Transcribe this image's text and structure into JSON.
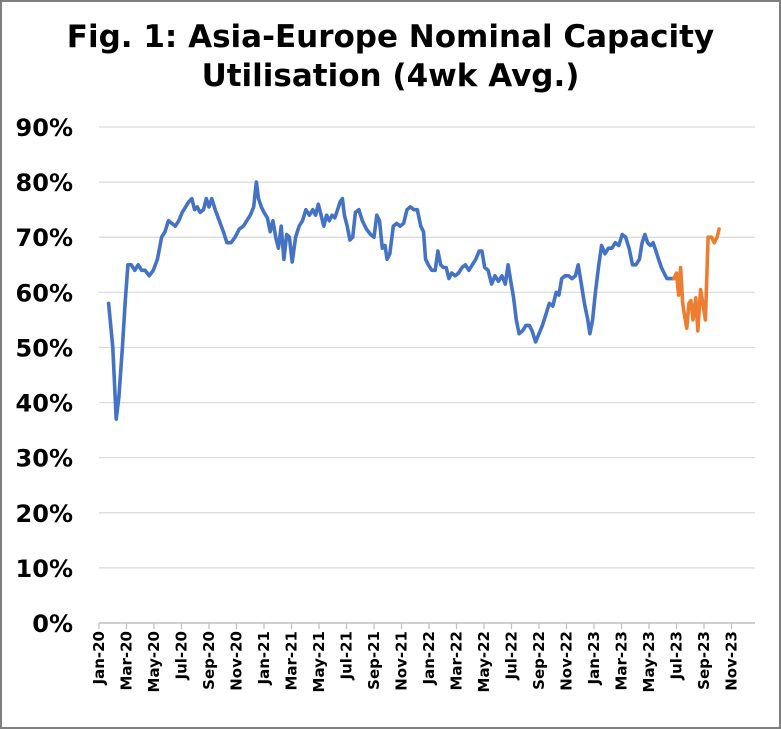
{
  "chart_data": {
    "type": "line",
    "title_lines": [
      "Fig. 1: Asia-Europe Nominal Capacity",
      "Utilisation (4wk Avg.)"
    ],
    "xlabel": "",
    "ylabel": "",
    "ylim": [
      0,
      90
    ],
    "y_ticks": [
      "0%",
      "10%",
      "20%",
      "30%",
      "40%",
      "50%",
      "60%",
      "70%",
      "80%",
      "90%"
    ],
    "x_ticks": [
      "Jan-20",
      "Mar-20",
      "May-20",
      "Jul-20",
      "Sep-20",
      "Nov-20",
      "Jan-21",
      "Mar-21",
      "May-21",
      "Jul-21",
      "Sep-21",
      "Nov-21",
      "Jan-22",
      "Mar-22",
      "May-22",
      "Jul-22",
      "Sep-22",
      "Nov-22",
      "Jan-23",
      "Mar-23",
      "May-23",
      "Jul-23",
      "Sep-23",
      "Nov-23"
    ],
    "grid": true,
    "legend": "none",
    "x_unit": "months since Jan-20",
    "series": [
      {
        "name": "",
        "color": "#4472c4",
        "points": [
          [
            0.7,
            58
          ],
          [
            1.0,
            50
          ],
          [
            1.25,
            37
          ],
          [
            1.45,
            41
          ],
          [
            1.7,
            50
          ],
          [
            1.9,
            58
          ],
          [
            2.1,
            65
          ],
          [
            2.35,
            65
          ],
          [
            2.6,
            64
          ],
          [
            2.85,
            65
          ],
          [
            3.1,
            64
          ],
          [
            3.35,
            64
          ],
          [
            3.65,
            63
          ],
          [
            3.95,
            64
          ],
          [
            4.25,
            66
          ],
          [
            4.55,
            70
          ],
          [
            4.8,
            71
          ],
          [
            5.05,
            73
          ],
          [
            5.3,
            72.5
          ],
          [
            5.55,
            72
          ],
          [
            5.8,
            73
          ],
          [
            6.05,
            74.5
          ],
          [
            6.3,
            75.5
          ],
          [
            6.55,
            76.5
          ],
          [
            6.75,
            77
          ],
          [
            6.95,
            75
          ],
          [
            7.15,
            75.5
          ],
          [
            7.35,
            74.5
          ],
          [
            7.6,
            75
          ],
          [
            7.8,
            77
          ],
          [
            8.0,
            75.5
          ],
          [
            8.2,
            77
          ],
          [
            8.45,
            75
          ],
          [
            8.75,
            73
          ],
          [
            9.05,
            71
          ],
          [
            9.3,
            69
          ],
          [
            9.6,
            69
          ],
          [
            9.9,
            70
          ],
          [
            10.2,
            71.5
          ],
          [
            10.5,
            72
          ],
          [
            10.75,
            73
          ],
          [
            11.0,
            74
          ],
          [
            11.25,
            75.5
          ],
          [
            11.35,
            78
          ],
          [
            11.45,
            80
          ],
          [
            11.6,
            77
          ],
          [
            11.8,
            75.5
          ],
          [
            12.0,
            74.5
          ],
          [
            12.25,
            73.5
          ],
          [
            12.45,
            71
          ],
          [
            12.65,
            73
          ],
          [
            12.85,
            70
          ],
          [
            13.05,
            68
          ],
          [
            13.25,
            72
          ],
          [
            13.45,
            66
          ],
          [
            13.65,
            70.5
          ],
          [
            13.85,
            70
          ],
          [
            14.05,
            65.5
          ],
          [
            14.3,
            70
          ],
          [
            14.55,
            72
          ],
          [
            14.8,
            73
          ],
          [
            15.05,
            75
          ],
          [
            15.3,
            74
          ],
          [
            15.55,
            75
          ],
          [
            15.75,
            74
          ],
          [
            15.95,
            76
          ],
          [
            16.15,
            74
          ],
          [
            16.35,
            72
          ],
          [
            16.55,
            74
          ],
          [
            16.75,
            73
          ],
          [
            16.95,
            74
          ],
          [
            17.15,
            73.5
          ],
          [
            17.35,
            75
          ],
          [
            17.55,
            76.5
          ],
          [
            17.7,
            77
          ],
          [
            17.85,
            74
          ],
          [
            18.05,
            72
          ],
          [
            18.25,
            69.5
          ],
          [
            18.45,
            70
          ],
          [
            18.65,
            74.5
          ],
          [
            18.9,
            75
          ],
          [
            19.15,
            73
          ],
          [
            19.45,
            71.5
          ],
          [
            19.75,
            70.5
          ],
          [
            20.0,
            70
          ],
          [
            20.2,
            74
          ],
          [
            20.4,
            73
          ],
          [
            20.6,
            68
          ],
          [
            20.8,
            68.5
          ],
          [
            20.95,
            66
          ],
          [
            21.15,
            67
          ],
          [
            21.4,
            72
          ],
          [
            21.65,
            72.5
          ],
          [
            21.9,
            72
          ],
          [
            22.15,
            72.5
          ],
          [
            22.4,
            75
          ],
          [
            22.65,
            75.5
          ],
          [
            22.9,
            75
          ],
          [
            23.15,
            75
          ],
          [
            23.4,
            72
          ],
          [
            23.6,
            71
          ],
          [
            23.75,
            66
          ],
          [
            23.95,
            65
          ],
          [
            24.2,
            64
          ],
          [
            24.45,
            64
          ],
          [
            24.65,
            67.5
          ],
          [
            24.85,
            65
          ],
          [
            25.05,
            64.5
          ],
          [
            25.25,
            64.5
          ],
          [
            25.45,
            62.5
          ],
          [
            25.65,
            63.5
          ],
          [
            25.9,
            63
          ],
          [
            26.15,
            63.5
          ],
          [
            26.4,
            64.5
          ],
          [
            26.65,
            65
          ],
          [
            26.9,
            64
          ],
          [
            27.15,
            65
          ],
          [
            27.4,
            66
          ],
          [
            27.65,
            67.5
          ],
          [
            27.85,
            67.5
          ],
          [
            28.05,
            64.5
          ],
          [
            28.3,
            64
          ],
          [
            28.55,
            61.5
          ],
          [
            28.8,
            63
          ],
          [
            29.05,
            62
          ],
          [
            29.3,
            63
          ],
          [
            29.55,
            61.5
          ],
          [
            29.75,
            65
          ],
          [
            29.95,
            62
          ],
          [
            30.15,
            59
          ],
          [
            30.35,
            55
          ],
          [
            30.55,
            52.5
          ],
          [
            30.8,
            53
          ],
          [
            31.05,
            54
          ],
          [
            31.3,
            54
          ],
          [
            31.5,
            53
          ],
          [
            31.75,
            51
          ],
          [
            32.0,
            52.5
          ],
          [
            32.25,
            54
          ],
          [
            32.5,
            56
          ],
          [
            32.75,
            58
          ],
          [
            33.0,
            57.5
          ],
          [
            33.25,
            60
          ],
          [
            33.45,
            59.5
          ],
          [
            33.65,
            62.5
          ],
          [
            33.9,
            63
          ],
          [
            34.15,
            63
          ],
          [
            34.4,
            62.5
          ],
          [
            34.65,
            63
          ],
          [
            34.85,
            65
          ],
          [
            35.05,
            62
          ],
          [
            35.3,
            58
          ],
          [
            35.55,
            55
          ],
          [
            35.7,
            52.5
          ],
          [
            35.9,
            55
          ],
          [
            36.1,
            60
          ],
          [
            36.35,
            65
          ],
          [
            36.55,
            68.5
          ],
          [
            36.8,
            67
          ],
          [
            37.05,
            68
          ],
          [
            37.3,
            68
          ],
          [
            37.55,
            69
          ],
          [
            37.8,
            68.5
          ],
          [
            38.05,
            70.5
          ],
          [
            38.3,
            70
          ],
          [
            38.55,
            68
          ],
          [
            38.8,
            65
          ],
          [
            39.05,
            65
          ],
          [
            39.3,
            66
          ],
          [
            39.5,
            69
          ],
          [
            39.7,
            70.5
          ],
          [
            39.9,
            69
          ],
          [
            40.1,
            68.5
          ],
          [
            40.3,
            69
          ],
          [
            40.5,
            67.5
          ],
          [
            40.7,
            66
          ],
          [
            40.9,
            64.5
          ],
          [
            41.1,
            63.5
          ],
          [
            41.3,
            62.5
          ],
          [
            41.55,
            62.5
          ],
          [
            41.8,
            62.5
          ]
        ]
      },
      {
        "name": "",
        "color": "#ed7d31",
        "points": [
          [
            41.8,
            62.5
          ],
          [
            42.0,
            63.5
          ],
          [
            42.15,
            59.5
          ],
          [
            42.3,
            64.5
          ],
          [
            42.45,
            58
          ],
          [
            42.6,
            55.5
          ],
          [
            42.75,
            53.5
          ],
          [
            42.9,
            58
          ],
          [
            43.05,
            58.5
          ],
          [
            43.2,
            55
          ],
          [
            43.4,
            59
          ],
          [
            43.55,
            53
          ],
          [
            43.75,
            60.5
          ],
          [
            43.95,
            57.5
          ],
          [
            44.1,
            55
          ],
          [
            44.3,
            70
          ],
          [
            44.55,
            70
          ],
          [
            44.75,
            69
          ],
          [
            44.95,
            70
          ],
          [
            45.1,
            71.5
          ]
        ]
      }
    ]
  }
}
